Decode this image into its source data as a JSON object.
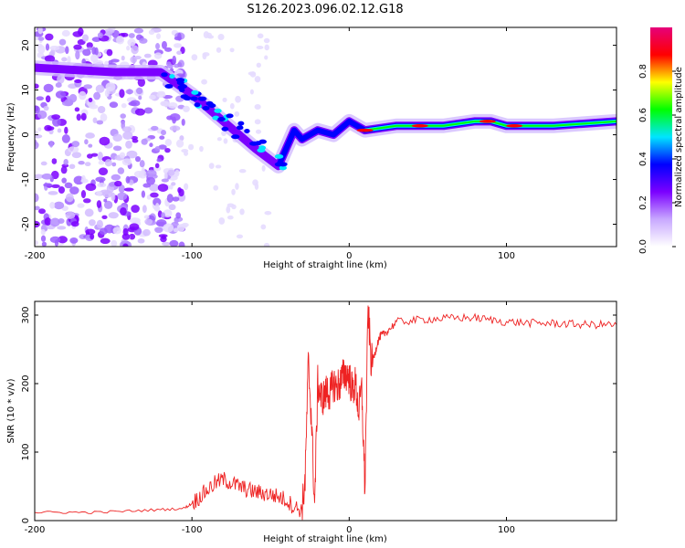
{
  "title": "S126.2023.096.02.12.G18",
  "chart_data": [
    {
      "type": "heatmap",
      "xlabel": "Height of straight line (km)",
      "ylabel": "Frequency (Hz)",
      "xlim": [
        -200,
        170
      ],
      "ylim": [
        -25,
        24
      ],
      "xticks": [
        -200,
        -100,
        0,
        100
      ],
      "yticks": [
        -20,
        -10,
        0,
        10,
        20
      ],
      "colorbar": {
        "label": "Normalized spectral amplitude",
        "range": [
          0,
          1
        ],
        "ticks": [
          "0.0",
          "0.2",
          "0.4",
          "0.6",
          "0.8"
        ],
        "colors": [
          "#ffffff",
          "#c8a8ff",
          "#7b00ff",
          "#0000ff",
          "#00e5ff",
          "#00ff00",
          "#ffff00",
          "#ff0000",
          "#e6007a"
        ]
      },
      "ridge": {
        "x": [
          -200,
          -150,
          -120,
          -100,
          -80,
          -60,
          -45,
          -35,
          -30,
          -20,
          -10,
          0,
          10,
          30,
          60,
          80,
          90,
          100,
          130,
          170
        ],
        "y": [
          15,
          14,
          14,
          9,
          3,
          -3,
          -7,
          1,
          -1,
          1,
          0,
          3,
          1,
          2,
          2,
          3,
          3,
          2,
          2,
          3
        ]
      },
      "noise_region": {
        "x": [
          -200,
          -105
        ],
        "y": [
          -25,
          24
        ]
      }
    },
    {
      "type": "line",
      "xlabel": "Height of straight line (km)",
      "ylabel": "SNR (10 * v/v)",
      "xlim": [
        -200,
        170
      ],
      "ylim": [
        0,
        320
      ],
      "xticks": [
        -200,
        -100,
        0,
        100
      ],
      "yticks": [
        0,
        100,
        200,
        300
      ],
      "color": "#ee2222",
      "x": [
        -200,
        -180,
        -160,
        -140,
        -120,
        -105,
        -100,
        -95,
        -90,
        -85,
        -80,
        -75,
        -70,
        -65,
        -60,
        -55,
        -50,
        -45,
        -40,
        -35,
        -30,
        -28,
        -26,
        -24,
        -22,
        -20,
        -18,
        -16,
        -14,
        -12,
        -10,
        -8,
        -6,
        -4,
        -2,
        0,
        2,
        4,
        6,
        8,
        10,
        12,
        14,
        16,
        18,
        20,
        22,
        25,
        30,
        40,
        50,
        60,
        70,
        80,
        90,
        100,
        110,
        120,
        130,
        140,
        150,
        160,
        170
      ],
      "y": [
        12,
        12,
        12,
        14,
        16,
        18,
        25,
        35,
        45,
        55,
        60,
        55,
        50,
        45,
        42,
        40,
        38,
        35,
        30,
        20,
        15,
        60,
        230,
        150,
        20,
        200,
        180,
        180,
        190,
        185,
        200,
        195,
        200,
        210,
        215,
        210,
        190,
        200,
        160,
        190,
        45,
        310,
        230,
        240,
        260,
        270,
        272,
        278,
        290,
        292,
        294,
        295,
        296,
        296,
        293,
        290,
        289,
        288,
        288,
        287,
        286,
        286,
        286
      ]
    }
  ]
}
